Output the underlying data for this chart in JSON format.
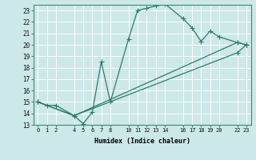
{
  "xlabel": "Humidex (Indice chaleur)",
  "ylabel": "",
  "bg_color": "#cce8e8",
  "grid_color": "#ffffff",
  "line_color": "#2e7b6e",
  "xlim": [
    -0.5,
    23.5
  ],
  "ylim": [
    13,
    23.5
  ],
  "xtick_positions": [
    0,
    1,
    2,
    3,
    4,
    5,
    6,
    7,
    8,
    9,
    10,
    11,
    12,
    13,
    14,
    15,
    16,
    17,
    18,
    19,
    20,
    21,
    22,
    23
  ],
  "xtick_labels_pos": [
    0,
    1,
    2,
    4,
    5,
    6,
    7,
    8,
    10,
    11,
    12,
    13,
    14,
    16,
    17,
    18,
    19,
    20,
    22,
    23
  ],
  "xtick_labels": [
    "0",
    "1",
    "2",
    "4",
    "5",
    "6",
    "7",
    "8",
    "10",
    "11",
    "12",
    "13",
    "14",
    "16",
    "17",
    "18",
    "19",
    "20",
    "22",
    "23"
  ],
  "ytick_positions": [
    13,
    14,
    15,
    16,
    17,
    18,
    19,
    20,
    21,
    22,
    23
  ],
  "ytick_labels": [
    "13",
    "14",
    "15",
    "16",
    "17",
    "18",
    "19",
    "20",
    "21",
    "22",
    "23"
  ],
  "line1_x": [
    0,
    1,
    2,
    4,
    5,
    6,
    7,
    8,
    10,
    11,
    12,
    13,
    14,
    16,
    17,
    18,
    19,
    20,
    22,
    23
  ],
  "line1_y": [
    15,
    14.7,
    14.7,
    13.8,
    13.1,
    14.1,
    18.5,
    15.0,
    20.5,
    23.0,
    23.2,
    23.4,
    23.6,
    22.3,
    21.5,
    20.3,
    21.2,
    20.7,
    20.2,
    20.0
  ],
  "line2_x": [
    0,
    4,
    22,
    23
  ],
  "line2_y": [
    15,
    13.8,
    20.2,
    20.0
  ],
  "line3_x": [
    0,
    4,
    22,
    23
  ],
  "line3_y": [
    15,
    13.8,
    19.3,
    20.0
  ]
}
